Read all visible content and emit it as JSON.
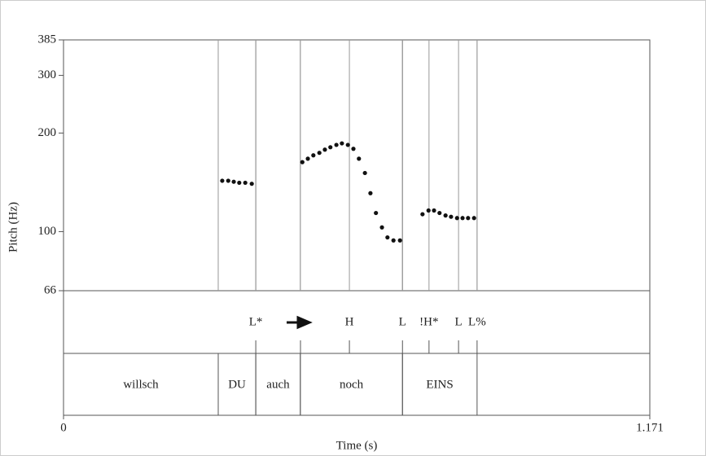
{
  "chart_data": {
    "type": "scatter",
    "x_label": "Time (s)",
    "y_label": "Pitch (Hz)",
    "log_y": true,
    "color": "#111111",
    "xlim": [
      0,
      1.171
    ],
    "xticks": [
      0,
      1.171
    ],
    "ylim": [
      66,
      385
    ],
    "yticks": [
      66,
      100,
      200,
      300,
      385
    ],
    "x": [
      0.317,
      0.329,
      0.34,
      0.351,
      0.363,
      0.376,
      0.477,
      0.488,
      0.499,
      0.511,
      0.522,
      0.533,
      0.545,
      0.556,
      0.568,
      0.579,
      0.59,
      0.602,
      0.613,
      0.624,
      0.636,
      0.647,
      0.659,
      0.672,
      0.717,
      0.729,
      0.74,
      0.751,
      0.763,
      0.774,
      0.786,
      0.797,
      0.808,
      0.82
    ],
    "values": [
      143,
      143,
      142,
      141,
      141,
      140,
      163,
      167,
      171,
      174,
      178,
      181,
      184,
      186,
      184,
      179,
      167,
      151,
      131,
      114,
      103,
      96,
      94,
      94,
      113,
      116,
      116,
      114,
      112,
      111,
      110,
      110,
      110,
      110
    ],
    "tones": [
      {
        "label": "L*",
        "time": 0.384
      },
      {
        "label": "H",
        "time": 0.571
      },
      {
        "label": "L",
        "time": 0.677
      },
      {
        "label": "!H*",
        "time": 0.73
      },
      {
        "label": "L",
        "time": 0.789
      },
      {
        "label": "L%",
        "time": 0.826
      }
    ],
    "words": [
      {
        "label": "willsch",
        "start": 0,
        "end": 0.309
      },
      {
        "label": "DU",
        "start": 0.309,
        "end": 0.384
      },
      {
        "label": "auch",
        "start": 0.384,
        "end": 0.473
      },
      {
        "label": "noch",
        "start": 0.473,
        "end": 0.677
      },
      {
        "label": "EINS",
        "start": 0.677,
        "end": 0.826
      }
    ]
  }
}
